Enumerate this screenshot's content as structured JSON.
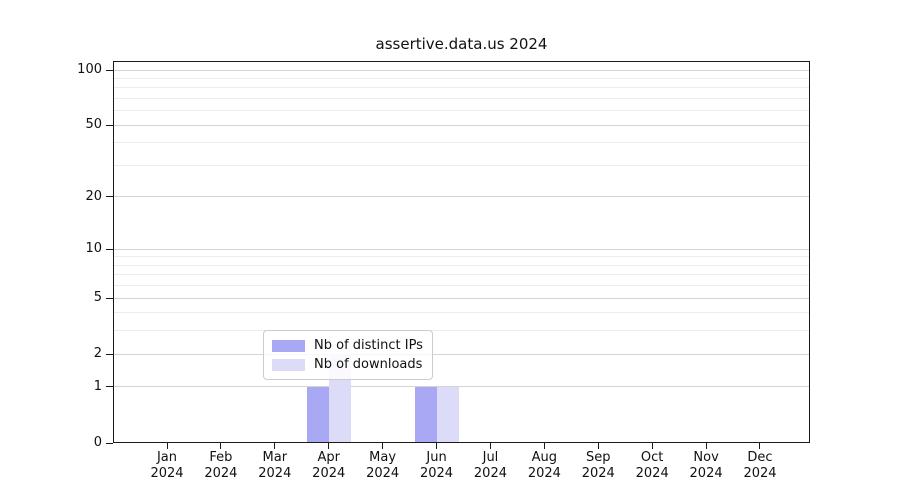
{
  "title": "assertive.data.us 2024",
  "chart_data": {
    "type": "bar",
    "title": "assertive.data.us 2024",
    "categories": [
      "Jan",
      "Feb",
      "Mar",
      "Apr",
      "May",
      "Jun",
      "Jul",
      "Aug",
      "Sep",
      "Oct",
      "Nov",
      "Dec"
    ],
    "x_year_label": "2024",
    "series": [
      {
        "name": "Nb of distinct IPs",
        "color": "#a8a8f4",
        "values": [
          0,
          0,
          0,
          1,
          0,
          1,
          0,
          0,
          0,
          0,
          0,
          0
        ]
      },
      {
        "name": "Nb of downloads",
        "color": "#dcdcf9",
        "values": [
          0,
          0,
          0,
          2,
          0,
          1,
          0,
          0,
          0,
          0,
          0,
          0
        ]
      }
    ],
    "xlabel": "",
    "ylabel": "",
    "y_axis": {
      "scale": "log1p",
      "ticks": [
        0,
        1,
        2,
        5,
        10,
        20,
        50,
        100
      ],
      "minor_ticks": [
        3,
        4,
        6,
        7,
        8,
        9,
        30,
        40,
        60,
        70,
        80,
        90
      ],
      "ylim": [
        0,
        112
      ]
    },
    "grid": {
      "on": true,
      "major_color": "#d4d4d4",
      "minor_color": "#ececec"
    },
    "legend": {
      "framed": true,
      "position": "lower-center-right"
    },
    "spine_color": "#1a1a1a"
  }
}
